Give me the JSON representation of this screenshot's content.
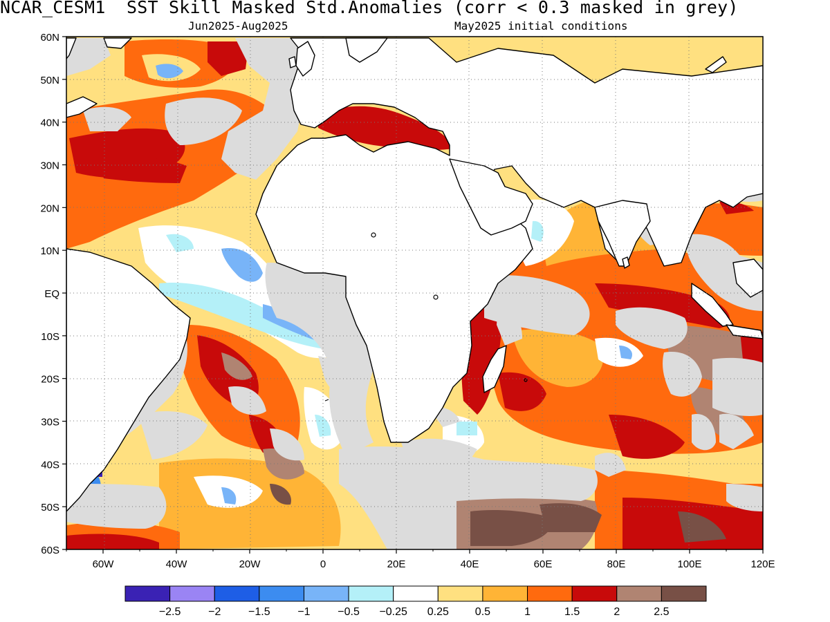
{
  "title": "NCAR_CESM1  SST Skill Masked Std.Anomalies (corr < 0.3 masked in grey)",
  "subtitle_left": "Jun2025-Aug2025",
  "subtitle_right": "May2025 initial conditions",
  "lon_labels": [
    "60W",
    "40W",
    "20W",
    "0",
    "20E",
    "40E",
    "60E",
    "80E",
    "100E",
    "120E"
  ],
  "lat_labels": [
    "60N",
    "50N",
    "40N",
    "30N",
    "20N",
    "10N",
    "EQ",
    "10S",
    "20S",
    "30S",
    "40S",
    "50S",
    "60S"
  ],
  "colorbar": {
    "colors": [
      "#3a22b4",
      "#9a84f4",
      "#1e5ee6",
      "#3c8cf0",
      "#78b4f8",
      "#b4f0f8",
      "#ffffff",
      "#ffe080",
      "#ffb436",
      "#ff6a0e",
      "#c80a0a",
      "#b08472",
      "#785046"
    ],
    "labels": [
      "-2.5",
      "-2",
      "-1.5",
      "-1",
      "-0.5",
      "-0.25",
      "0.25",
      "0.5",
      "1",
      "1.5",
      "2",
      "2.5"
    ]
  },
  "colors": {
    "masked_grey": "#dcdcdc",
    "land": "#ffffff",
    "coast": "#000000"
  }
}
